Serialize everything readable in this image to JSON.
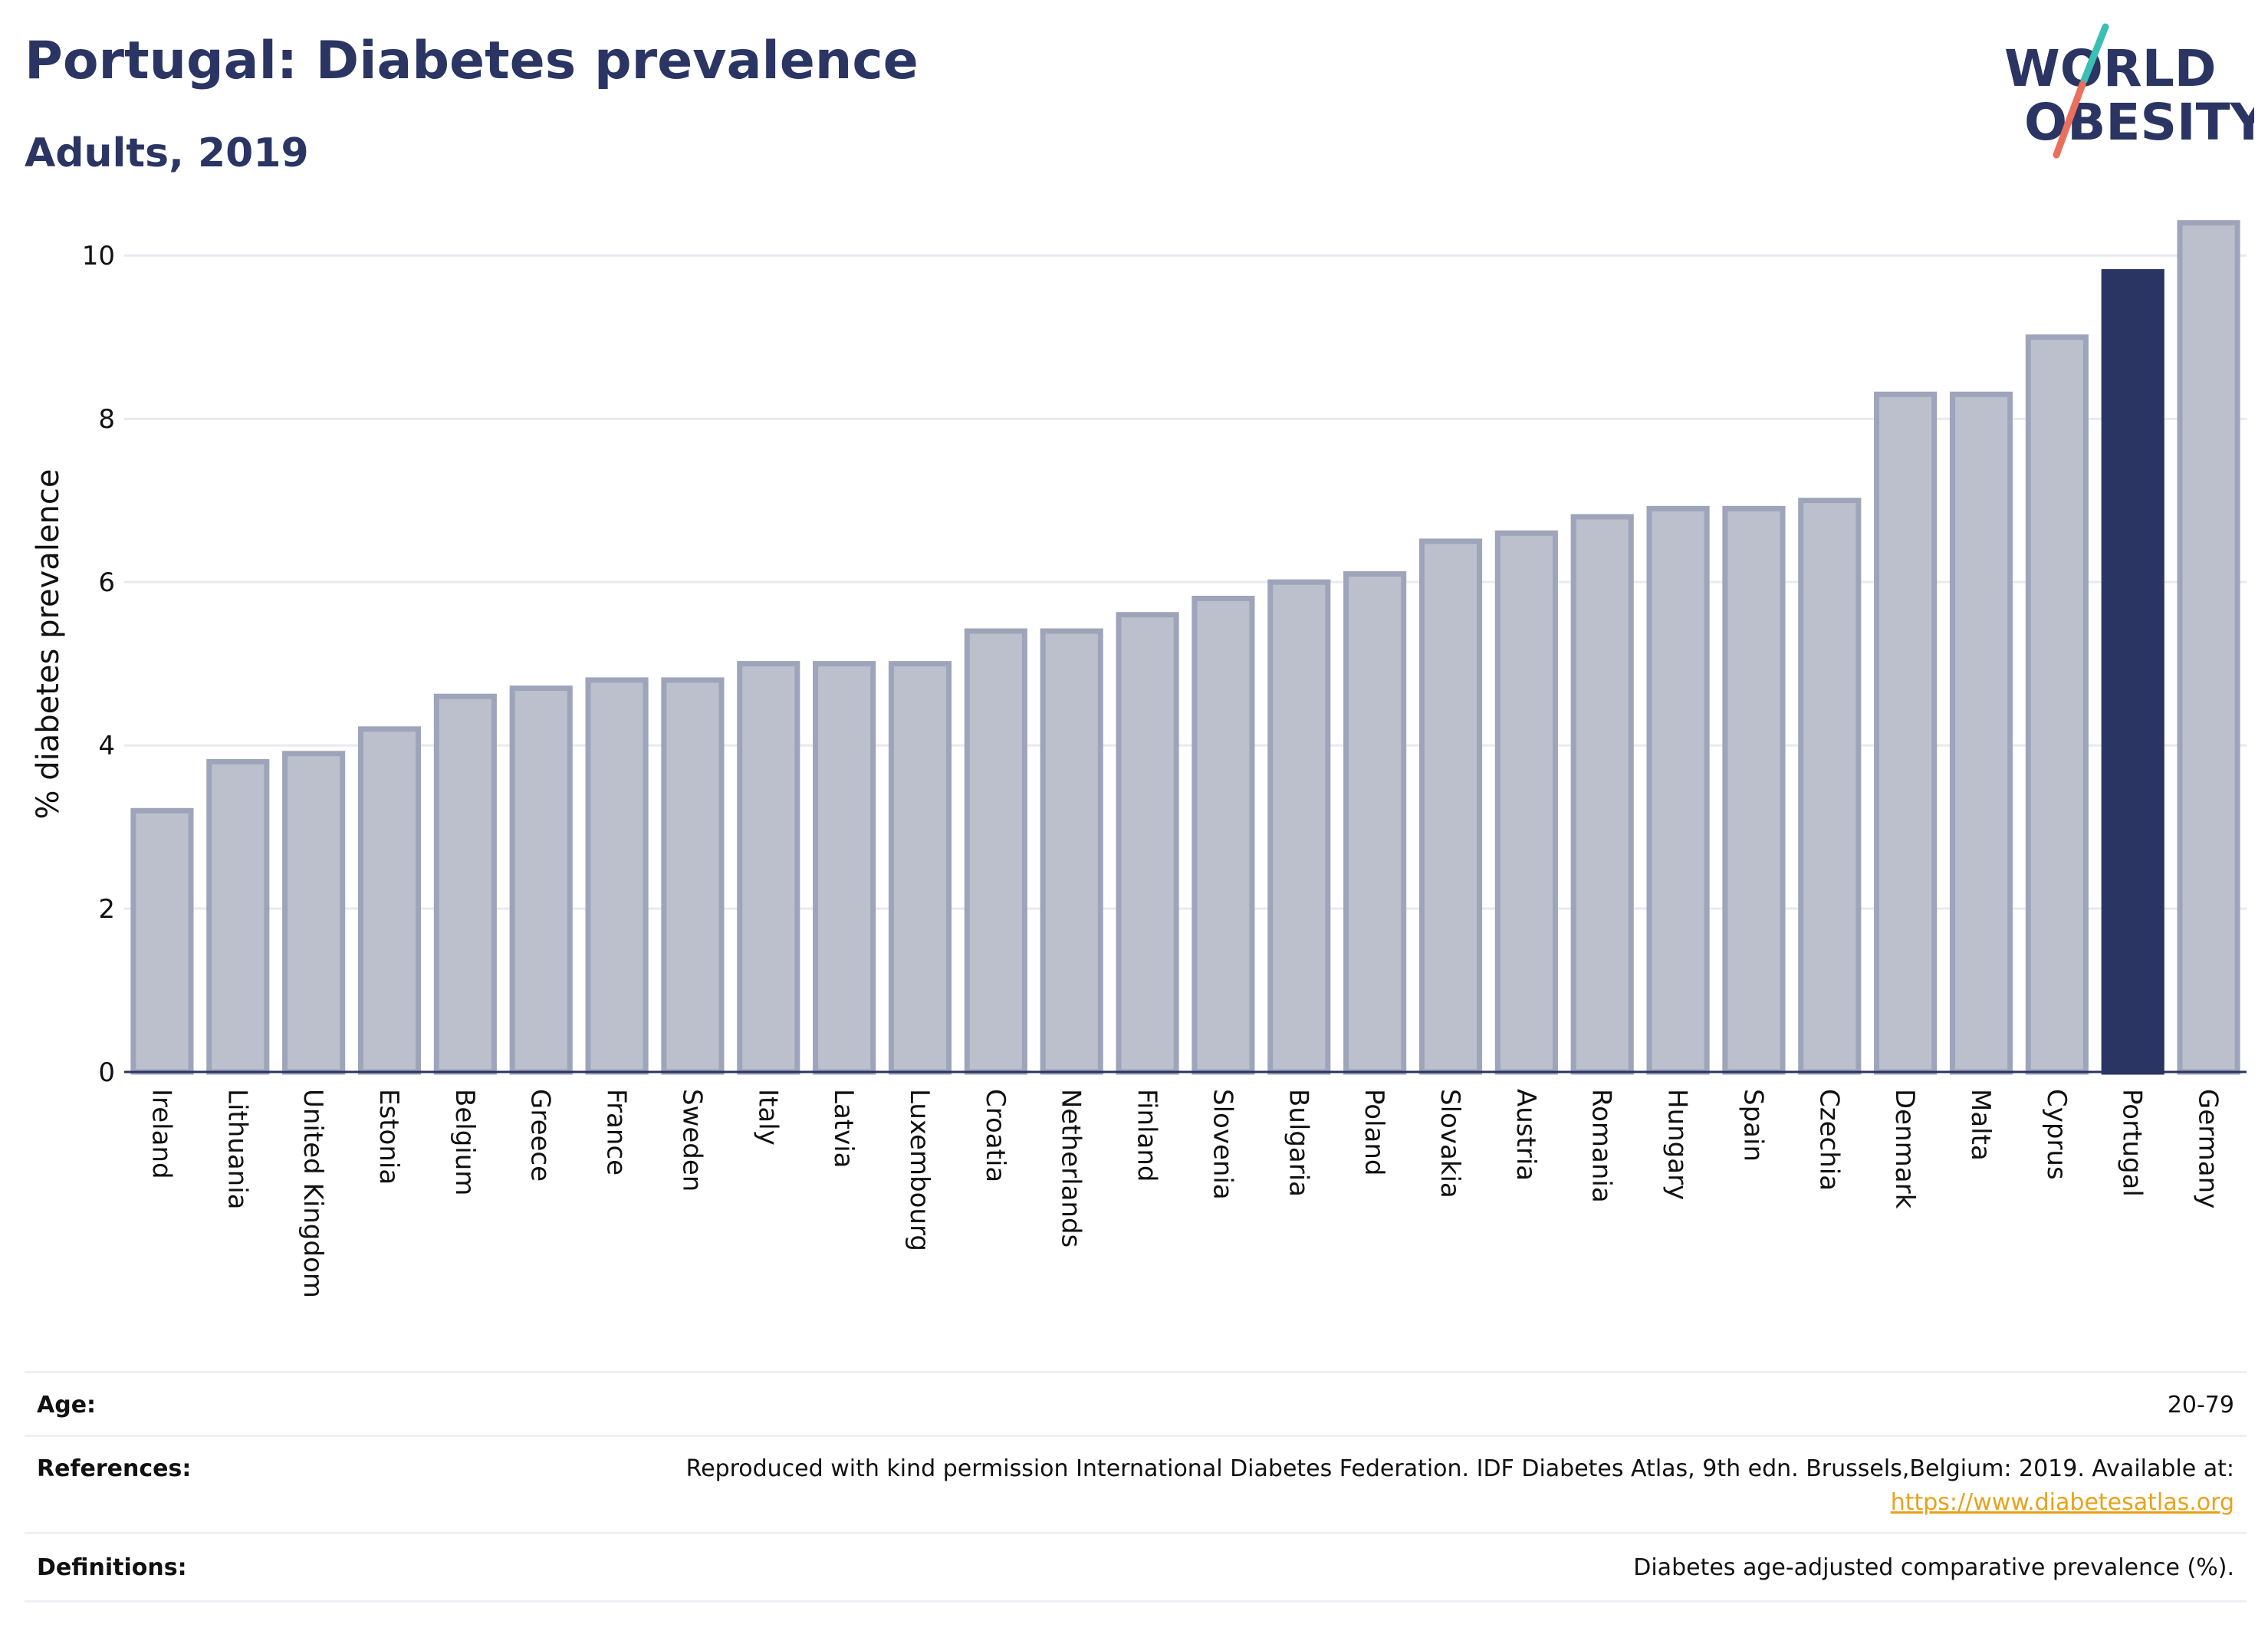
{
  "header": {
    "title": "Portugal: Diabetes prevalence",
    "subtitle": "Adults, 2019"
  },
  "logo": {
    "line1": "WORLD",
    "line2": "OBESITY",
    "accent_teal": "#3bbfb5",
    "accent_coral": "#e8705c",
    "text_color": "#2b3563"
  },
  "colors": {
    "bar_default": "#bcc0cd",
    "bar_border": "#9ea4ba",
    "bar_highlight": "#2b3563",
    "grid": "#e8eaef",
    "axis": "#2b3563"
  },
  "chart_data": {
    "type": "bar",
    "ylabel": "% diabetes prevalence",
    "xlabel": "",
    "ylim": [
      0,
      10.5
    ],
    "yticks": [
      0,
      2,
      4,
      6,
      8,
      10
    ],
    "grid": true,
    "highlight": "Portugal",
    "categories": [
      "Ireland",
      "Lithuania",
      "United Kingdom",
      "Estonia",
      "Belgium",
      "Greece",
      "France",
      "Sweden",
      "Italy",
      "Latvia",
      "Luxembourg",
      "Croatia",
      "Netherlands",
      "Finland",
      "Slovenia",
      "Bulgaria",
      "Poland",
      "Slovakia",
      "Austria",
      "Romania",
      "Hungary",
      "Spain",
      "Czechia",
      "Denmark",
      "Malta",
      "Cyprus",
      "Portugal",
      "Germany"
    ],
    "values": [
      3.2,
      3.8,
      3.9,
      4.2,
      4.6,
      4.7,
      4.8,
      4.8,
      5.0,
      5.0,
      5.0,
      5.4,
      5.4,
      5.6,
      5.8,
      6.0,
      6.1,
      6.5,
      6.6,
      6.8,
      6.9,
      6.9,
      7.0,
      8.3,
      8.3,
      9.0,
      9.8,
      10.4
    ]
  },
  "meta": {
    "age_label": "Age:",
    "age_value": "20-79",
    "references_label": "References:",
    "references_value": "Reproduced with kind permission International Diabetes Federation. IDF Diabetes Atlas, 9th edn. Brussels,Belgium: 2019. Available at:",
    "references_link": "https://www.diabetesatlas.org",
    "definitions_label": "Definitions:",
    "definitions_value": "Diabetes age-adjusted comparative prevalence (%)."
  }
}
